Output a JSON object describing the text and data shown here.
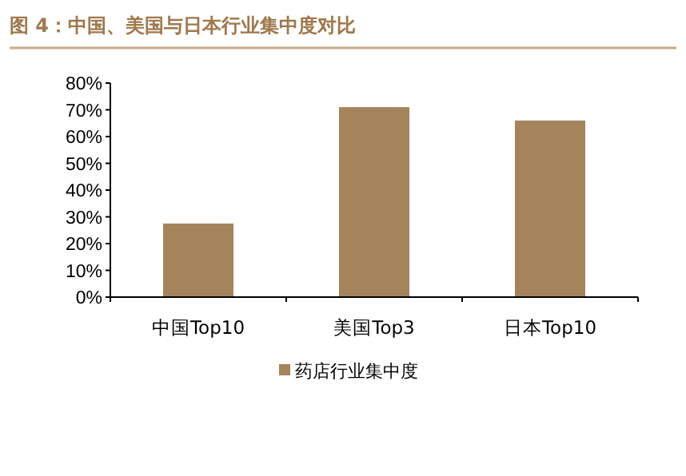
{
  "chart_data": {
    "type": "bar",
    "title": "图 4：中国、美国与日本行业集中度对比",
    "categories": [
      "中国Top10",
      "美国Top3",
      "日本Top10"
    ],
    "series": [
      {
        "name": "药店行业集中度",
        "color": "#a5835b",
        "values": [
          27.5,
          71,
          66
        ]
      }
    ],
    "ylim": [
      0,
      80
    ],
    "yticks": [
      {
        "value": 0,
        "label": "0%"
      },
      {
        "value": 10,
        "label": "10%"
      },
      {
        "value": 20,
        "label": "20%"
      },
      {
        "value": 30,
        "label": "30%"
      },
      {
        "value": 40,
        "label": "40%"
      },
      {
        "value": 50,
        "label": "50%"
      },
      {
        "value": 60,
        "label": "60%"
      },
      {
        "value": 70,
        "label": "70%"
      },
      {
        "value": 80,
        "label": "80%"
      }
    ],
    "grid": false,
    "legend": "bottom"
  }
}
